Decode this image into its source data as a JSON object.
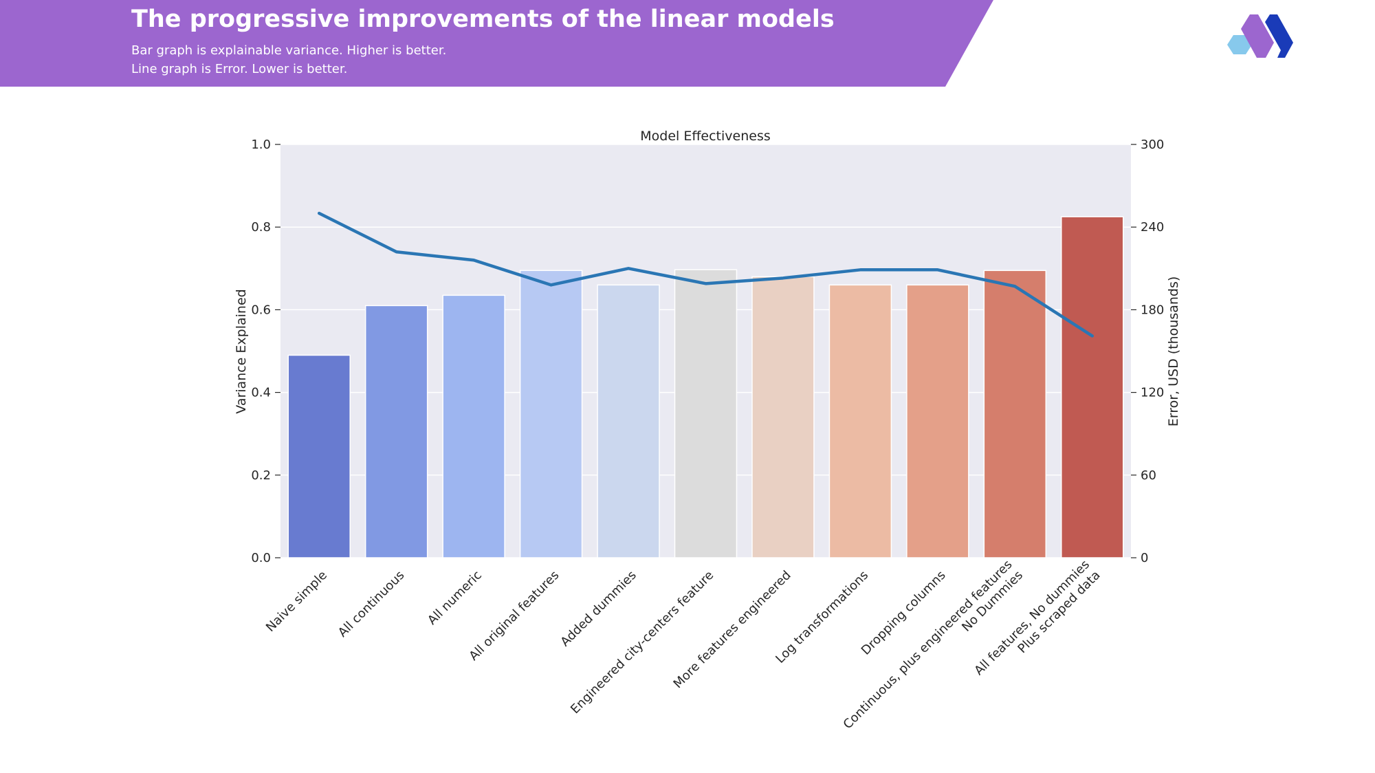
{
  "slide": {
    "title": "The progressive improvements of the linear models",
    "subtitle_line1": "Bar graph is explainable variance.  Higher is better.",
    "subtitle_line2": "Line graph is Error. Lower is better.",
    "banner_color": "#9c66cf",
    "logo_colors": [
      "#87c9ec",
      "#9c66cf",
      "#1a3bb8"
    ]
  },
  "chart_data": {
    "type": "bar",
    "title": "Model Effectiveness",
    "categories": [
      "Naive simple",
      "All continuous",
      "All numeric",
      "All original features",
      "Added dummies",
      "Engineered city-centers feature",
      "More features engineered",
      "Log transformations",
      "Dropping columns",
      "Continuous, plus engineered features\nNo Dummies",
      "All features, No dummies\nPlus scraped data"
    ],
    "ylabel": "Variance Explained",
    "ylim": [
      0,
      1.0
    ],
    "yticks": [
      "0.0",
      "0.2",
      "0.4",
      "0.6",
      "0.8",
      "1.0"
    ],
    "y2label": "Error, USD (thousands)",
    "y2lim": [
      0,
      300
    ],
    "y2ticks": [
      "0",
      "60",
      "120",
      "180",
      "240",
      "300"
    ],
    "grid": true,
    "series": [
      {
        "kind": "bar",
        "axis": "left",
        "values": [
          0.49,
          0.61,
          0.635,
          0.695,
          0.66,
          0.697,
          0.68,
          0.66,
          0.66,
          0.695,
          0.825
        ],
        "colors": [
          "#687bd0",
          "#8199e3",
          "#9db5f0",
          "#b7c9f3",
          "#cbd7ee",
          "#dcdcdc",
          "#e9d0c3",
          "#ecbba4",
          "#e4a089",
          "#d57e6c",
          "#c05a52"
        ]
      },
      {
        "kind": "line",
        "axis": "right",
        "values": [
          250,
          222,
          216,
          198,
          210,
          199,
          203,
          209,
          209,
          197,
          161
        ],
        "color": "#2a76b4"
      }
    ]
  }
}
